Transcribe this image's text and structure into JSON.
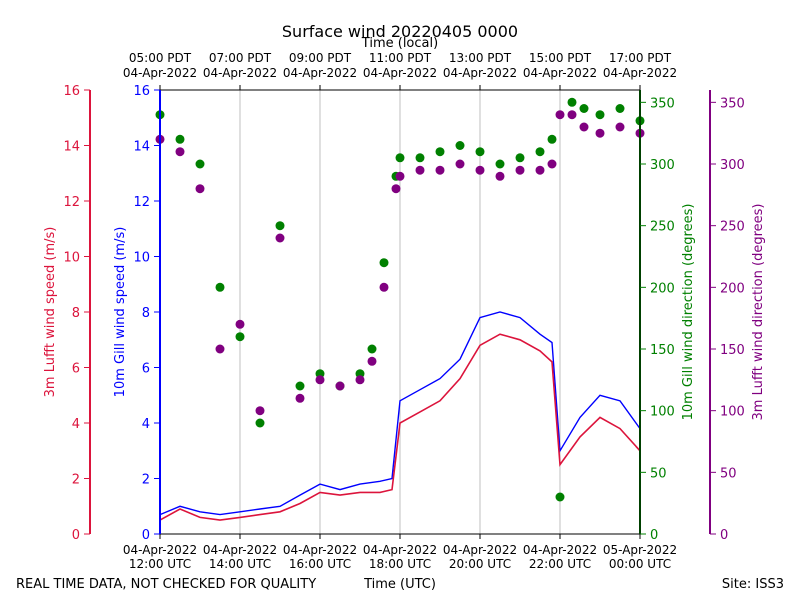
{
  "chart_data": {
    "type": "line+scatter",
    "title": "Surface wind 20220405 0000",
    "top_xlabel": "Time (local)",
    "bottom_xlabel": "Time (UTC)",
    "footer_left": "REAL TIME DATA, NOT CHECKED FOR QUALITY",
    "footer_right": "Site: ISS3",
    "x_range_utc_hours": [
      12,
      24
    ],
    "bottom_ticks": [
      {
        "hour": 12,
        "line1": "04-Apr-2022",
        "line2": "12:00 UTC"
      },
      {
        "hour": 14,
        "line1": "04-Apr-2022",
        "line2": "14:00 UTC"
      },
      {
        "hour": 16,
        "line1": "04-Apr-2022",
        "line2": "16:00 UTC"
      },
      {
        "hour": 18,
        "line1": "04-Apr-2022",
        "line2": "18:00 UTC"
      },
      {
        "hour": 20,
        "line1": "04-Apr-2022",
        "line2": "20:00 UTC"
      },
      {
        "hour": 22,
        "line1": "04-Apr-2022",
        "line2": "22:00 UTC"
      },
      {
        "hour": 24,
        "line1": "05-Apr-2022",
        "line2": "00:00 UTC"
      }
    ],
    "top_ticks": [
      {
        "hour": 12,
        "line1": "05:00 PDT",
        "line2": "04-Apr-2022"
      },
      {
        "hour": 14,
        "line1": "07:00 PDT",
        "line2": "04-Apr-2022"
      },
      {
        "hour": 16,
        "line1": "09:00 PDT",
        "line2": "04-Apr-2022"
      },
      {
        "hour": 18,
        "line1": "11:00 PDT",
        "line2": "04-Apr-2022"
      },
      {
        "hour": 20,
        "line1": "13:00 PDT",
        "line2": "04-Apr-2022"
      },
      {
        "hour": 22,
        "line1": "15:00 PDT",
        "line2": "04-Apr-2022"
      },
      {
        "hour": 24,
        "line1": "17:00 PDT",
        "line2": "04-Apr-2022"
      }
    ],
    "axes": {
      "gill_speed": {
        "label": "10m Gill wind speed (m/s)",
        "range": [
          0,
          16
        ],
        "ticks": [
          "0",
          "2",
          "4",
          "6",
          "8",
          "10",
          "12",
          "14",
          "16"
        ],
        "color": "#0000ff"
      },
      "lufft_speed": {
        "label": "3m Lufft wind speed (m/s)",
        "range": [
          0,
          16
        ],
        "ticks": [
          "0",
          "2",
          "4",
          "6",
          "8",
          "10",
          "12",
          "14",
          "16"
        ],
        "color": "#dc143c"
      },
      "gill_dir": {
        "label": "10m Gill wind direction (degrees)",
        "range": [
          0,
          360
        ],
        "ticks": [
          "0",
          "50",
          "100",
          "150",
          "200",
          "250",
          "300",
          "350"
        ],
        "color": "#008000"
      },
      "lufft_dir": {
        "label": "3m Lufft wind direction (degrees)",
        "range": [
          0,
          360
        ],
        "ticks": [
          "0",
          "50",
          "100",
          "150",
          "200",
          "250",
          "300",
          "350"
        ],
        "color": "#800080"
      }
    },
    "series": [
      {
        "name": "10m Gill wind speed",
        "kind": "line",
        "axis": "gill_speed",
        "color": "#0000ff",
        "x": [
          12,
          12.5,
          13,
          13.5,
          14,
          14.5,
          15,
          15.5,
          16,
          16.5,
          17,
          17.5,
          17.8,
          18,
          18.5,
          19,
          19.5,
          20,
          20.5,
          21,
          21.5,
          21.8,
          22,
          22.5,
          23,
          23.5,
          24
        ],
        "y": [
          0.7,
          1.0,
          0.8,
          0.7,
          0.8,
          0.9,
          1.0,
          1.4,
          1.8,
          1.6,
          1.8,
          1.9,
          2.0,
          4.8,
          5.2,
          5.6,
          6.3,
          7.8,
          8.0,
          7.8,
          7.2,
          6.9,
          3.0,
          4.2,
          5.0,
          4.8,
          3.8
        ]
      },
      {
        "name": "3m Lufft wind speed",
        "kind": "line",
        "axis": "lufft_speed",
        "color": "#dc143c",
        "x": [
          12,
          12.5,
          13,
          13.5,
          14,
          14.5,
          15,
          15.5,
          16,
          16.5,
          17,
          17.5,
          17.8,
          18,
          18.5,
          19,
          19.5,
          20,
          20.5,
          21,
          21.5,
          21.8,
          22,
          22.5,
          23,
          23.5,
          24
        ],
        "y": [
          0.5,
          0.9,
          0.6,
          0.5,
          0.6,
          0.7,
          0.8,
          1.1,
          1.5,
          1.4,
          1.5,
          1.5,
          1.6,
          4.0,
          4.4,
          4.8,
          5.6,
          6.8,
          7.2,
          7.0,
          6.6,
          6.2,
          2.5,
          3.5,
          4.2,
          3.8,
          3.0
        ]
      },
      {
        "name": "10m Gill wind direction",
        "kind": "scatter",
        "axis": "gill_dir",
        "color": "#008000",
        "x": [
          12,
          12.5,
          13,
          13.5,
          14,
          14.5,
          15,
          15.5,
          16,
          16.5,
          17,
          17.3,
          17.6,
          17.9,
          18,
          18.5,
          19,
          19.5,
          20,
          20.5,
          21,
          21.5,
          21.8,
          22,
          22.3,
          22.6,
          23,
          23.5,
          24
        ],
        "y": [
          340,
          320,
          300,
          200,
          160,
          90,
          250,
          120,
          130,
          120,
          130,
          150,
          220,
          290,
          305,
          305,
          310,
          315,
          310,
          300,
          305,
          310,
          320,
          30,
          350,
          345,
          340,
          345,
          335
        ]
      },
      {
        "name": "3m Lufft wind direction",
        "kind": "scatter",
        "axis": "lufft_dir",
        "color": "#800080",
        "x": [
          12,
          12.5,
          13,
          13.5,
          14,
          14.5,
          15,
          15.5,
          16,
          16.5,
          17,
          17.3,
          17.6,
          17.9,
          18,
          18.5,
          19,
          19.5,
          20,
          20.5,
          21,
          21.5,
          21.8,
          22,
          22.3,
          22.6,
          23,
          23.5,
          24
        ],
        "y": [
          320,
          310,
          280,
          150,
          170,
          100,
          240,
          110,
          125,
          120,
          125,
          140,
          200,
          280,
          290,
          295,
          295,
          300,
          295,
          290,
          295,
          295,
          300,
          340,
          340,
          330,
          325,
          330,
          325
        ]
      }
    ]
  }
}
